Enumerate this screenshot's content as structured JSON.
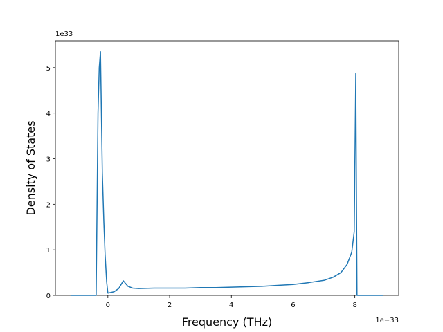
{
  "chart_data": {
    "type": "line",
    "xlabel": "Frequency (THz)",
    "ylabel": "Density of States",
    "x_offset_label": "1e−33",
    "y_offset_label": "1e33",
    "x": [
      -1.21,
      -0.38,
      -0.32,
      -0.28,
      -0.24,
      -0.18,
      -0.13,
      -0.09,
      -0.04,
      0,
      0.2,
      0.35,
      0.5,
      0.65,
      0.8,
      1.0,
      1.5,
      2.0,
      2.5,
      3.0,
      3.5,
      4.0,
      4.5,
      5.0,
      5.5,
      6.0,
      6.5,
      7.0,
      7.3,
      7.55,
      7.75,
      7.9,
      7.98,
      8.03,
      8.07,
      8.92
    ],
    "series": [
      {
        "color": "#1f77b4",
        "values": [
          0,
          0,
          4.0,
          5.0,
          5.35,
          2.7,
          1.6,
          0.9,
          0.3,
          0.05,
          0.08,
          0.15,
          0.32,
          0.2,
          0.16,
          0.15,
          0.16,
          0.16,
          0.16,
          0.17,
          0.17,
          0.18,
          0.19,
          0.2,
          0.22,
          0.24,
          0.28,
          0.33,
          0.4,
          0.5,
          0.68,
          0.95,
          1.4,
          4.87,
          0,
          0
        ]
      }
    ],
    "xlim": [
      -1.7,
      9.42
    ],
    "ylim": [
      0,
      5.59
    ],
    "xticks": [
      0,
      2,
      4,
      6,
      8
    ],
    "yticks": [
      0,
      1,
      2,
      3,
      4,
      5
    ]
  }
}
